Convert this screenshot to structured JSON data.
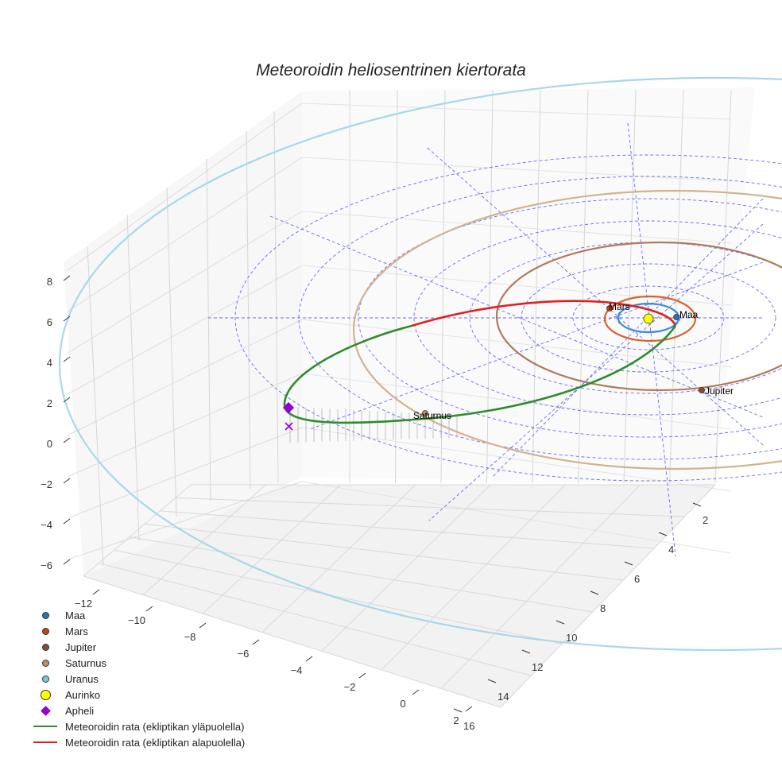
{
  "chart_data": {
    "type": "scatter",
    "title": "Meteoroidin heliosentrinen kiertorata",
    "axes": {
      "x_ticks": [
        "−12",
        "−10",
        "−8",
        "−6",
        "−4",
        "−2",
        "0",
        "2"
      ],
      "y_ticks": [
        "2",
        "4",
        "6",
        "8",
        "10",
        "12",
        "14",
        "16"
      ],
      "z_ticks": [
        "8",
        "6",
        "4",
        "2",
        "0",
        "−2",
        "−4",
        "−6"
      ],
      "grid": true
    },
    "planets": [
      {
        "name": "Maa",
        "label": "Maa",
        "color": "#1f77b4",
        "orbit_color": "#3a8fd6"
      },
      {
        "name": "Mars",
        "label": "Mars",
        "color": "#c1440e",
        "orbit_color": "#d9622b"
      },
      {
        "name": "Jupiter",
        "label": "Jupiter",
        "color": "#8b4a2b",
        "orbit_color": "#b07a5c"
      },
      {
        "name": "Saturnus",
        "label": "Saturnus",
        "color": "#c98a5e",
        "orbit_color": "#d2b28f"
      },
      {
        "name": "Uranus",
        "label": "",
        "color": "#7fc4e0",
        "orbit_color": "#a8d8e8"
      }
    ],
    "sun": {
      "name": "Aurinko",
      "color": "#ffff00"
    },
    "aphelion": {
      "name": "Apheli",
      "color": "#9400d3"
    },
    "meteoroid": {
      "above_label": "Meteoroidin rata (ekliptikan yläpuolella)",
      "below_label": "Meteoroidin rata (ekliptikan alapuolella)",
      "above_color": "#2e8b2e",
      "below_color": "#e02020"
    }
  },
  "legend": [
    {
      "label": "Maa",
      "kind": "dot",
      "color": "#1f77b4"
    },
    {
      "label": "Mars",
      "kind": "dot",
      "color": "#c1440e"
    },
    {
      "label": "Jupiter",
      "kind": "dot",
      "color": "#8b4a2b"
    },
    {
      "label": "Saturnus",
      "kind": "dot",
      "color": "#c98a5e"
    },
    {
      "label": "Uranus",
      "kind": "dot",
      "color": "#7fc4e0"
    },
    {
      "label": "Aurinko",
      "kind": "sun",
      "color": "#ffff00"
    },
    {
      "label": "Apheli",
      "kind": "diamond",
      "color": "#9400d3"
    },
    {
      "label": "Meteoroidin rata (ekliptikan yläpuolella)",
      "kind": "line",
      "color": "#2e8b2e"
    },
    {
      "label": "Meteoroidin rata (ekliptikan alapuolella)",
      "kind": "line",
      "color": "#e02020"
    }
  ]
}
